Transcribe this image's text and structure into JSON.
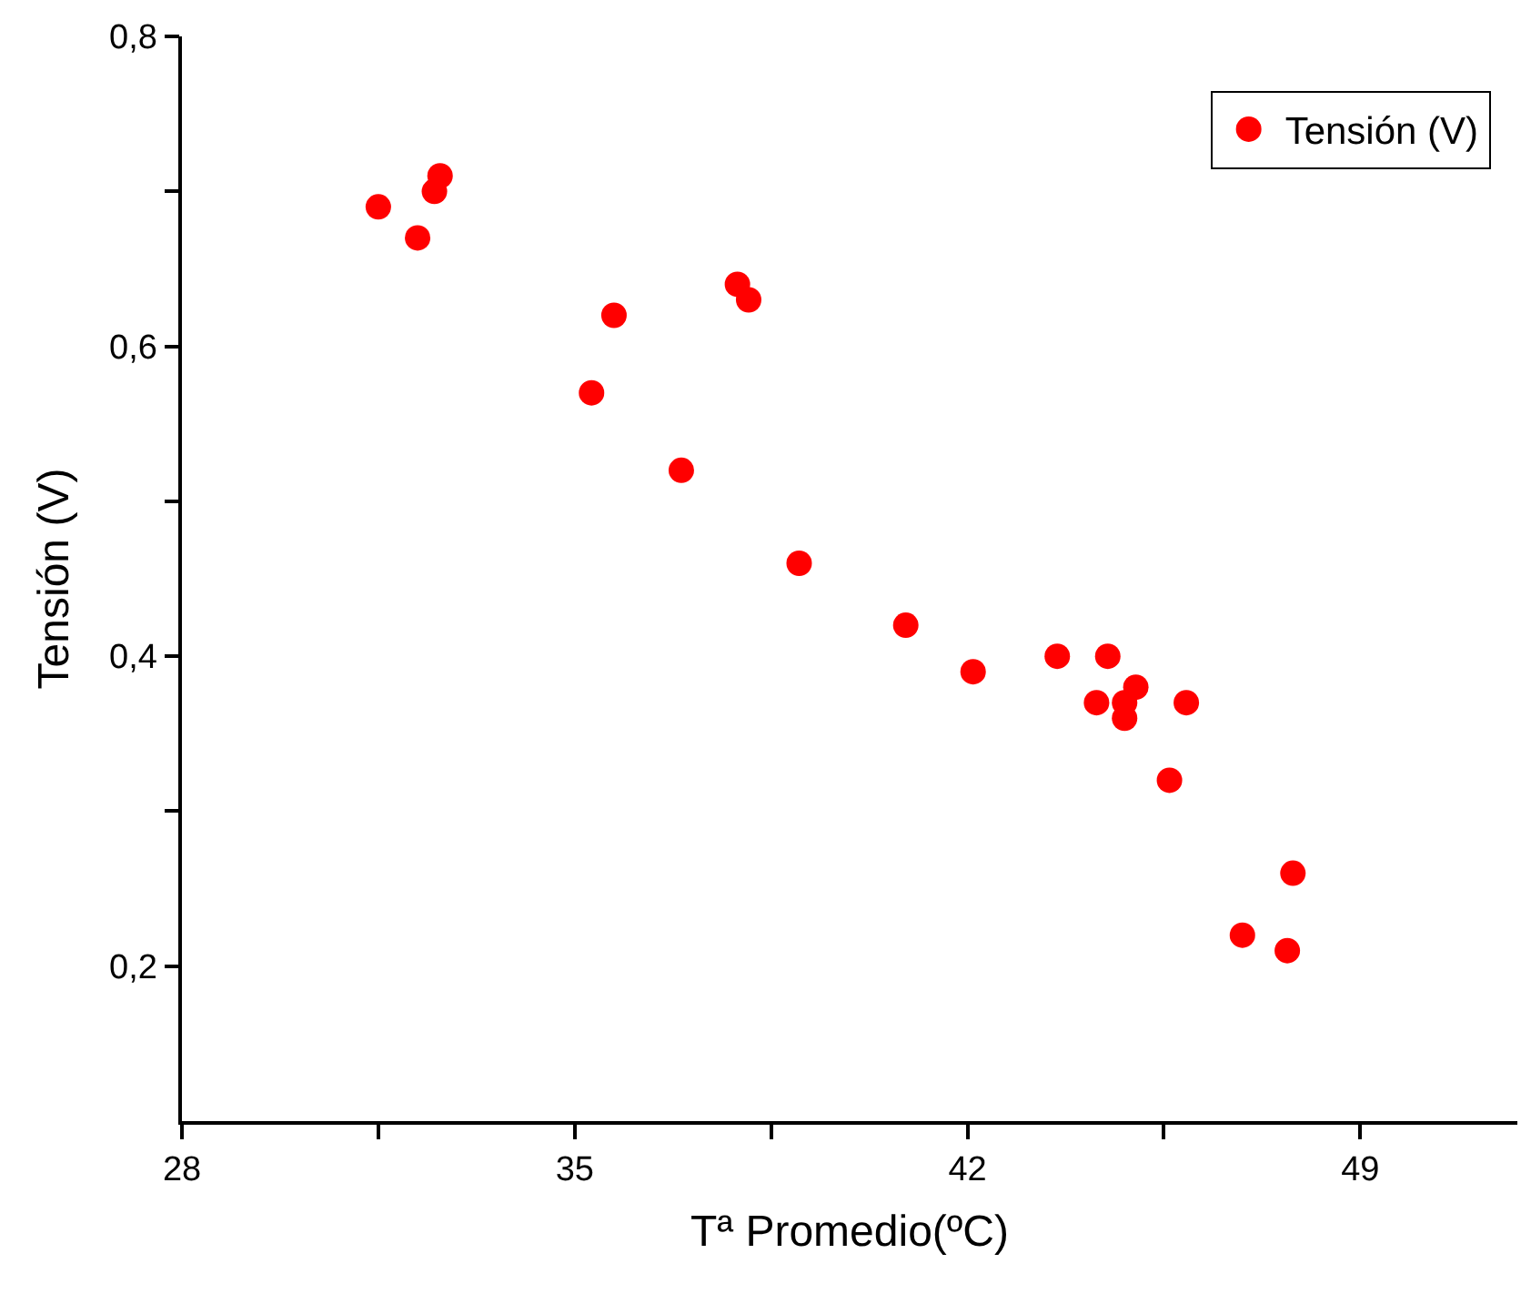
{
  "chart_data": {
    "type": "scatter",
    "xlabel": "Tª Promedio(ºC)",
    "ylabel": "Tensión (V)",
    "x": [
      31.5,
      32.2,
      32.5,
      32.6,
      35.3,
      35.7,
      36.9,
      37.9,
      38.1,
      39.0,
      40.9,
      42.1,
      43.6,
      44.3,
      44.5,
      44.8,
      44.8,
      45.0,
      45.9,
      45.6,
      46.9,
      47.7,
      47.8
    ],
    "series": [
      {
        "name": "Tensión (V)",
        "color": "#ff0000",
        "values": [
          0.69,
          0.67,
          0.7,
          0.71,
          0.57,
          0.62,
          0.52,
          0.64,
          0.63,
          0.46,
          0.42,
          0.39,
          0.4,
          0.37,
          0.4,
          0.37,
          0.36,
          0.38,
          0.37,
          0.32,
          0.22,
          0.21,
          0.26
        ]
      }
    ],
    "xlim": [
      28,
      51.8
    ],
    "ylim": [
      0.1,
      0.8
    ],
    "xticks": [
      28,
      {
        "value": 31.5,
        "label": null
      },
      35,
      {
        "value": 38.5,
        "label": null
      },
      42,
      {
        "value": 45.5,
        "label": null
      },
      49
    ],
    "yticks": [
      {
        "value": 0.2,
        "label": "0,2"
      },
      {
        "value": 0.3,
        "label": null
      },
      {
        "value": 0.4,
        "label": "0,4"
      },
      {
        "value": 0.5,
        "label": null
      },
      {
        "value": 0.6,
        "label": "0,6"
      },
      {
        "value": 0.7,
        "label": null
      },
      {
        "value": 0.8,
        "label": "0,8"
      }
    ],
    "legend": "top right",
    "marker": "circle"
  }
}
